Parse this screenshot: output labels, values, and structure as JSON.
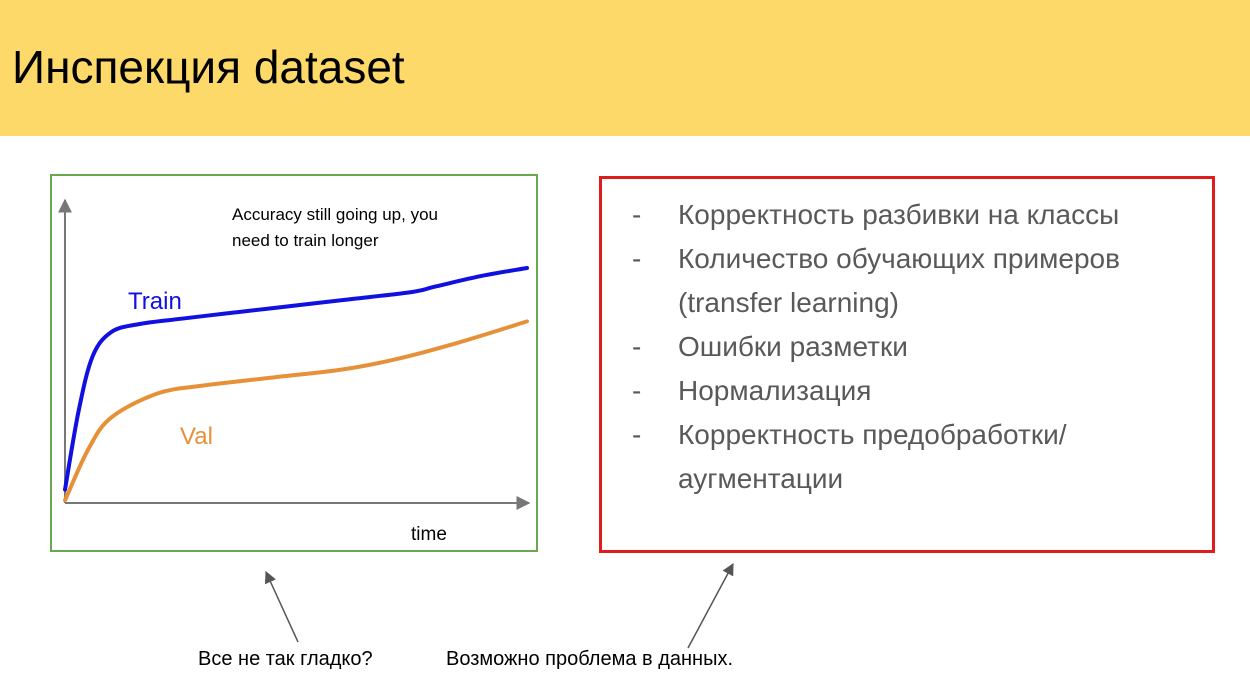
{
  "slide": {
    "title": "Инспекция dataset"
  },
  "chart": {
    "annotation_line1": "Accuracy still going up, you",
    "annotation_line2": "need to train longer",
    "x_axis_label": "time",
    "train_label": "Train",
    "val_label": "Val"
  },
  "chart_data": {
    "type": "line",
    "title": "",
    "xlabel": "time",
    "ylabel": "",
    "grid": false,
    "legend": "inline labels",
    "series": [
      {
        "name": "Train",
        "color": "#1010e0",
        "x": [
          0,
          0.03,
          0.06,
          0.1,
          0.16,
          0.25,
          0.35,
          0.45,
          0.6,
          0.75,
          0.8,
          0.9,
          1.0
        ],
        "y": [
          0.05,
          0.35,
          0.55,
          0.64,
          0.67,
          0.69,
          0.71,
          0.73,
          0.76,
          0.79,
          0.81,
          0.85,
          0.88
        ]
      },
      {
        "name": "Val",
        "color": "#e69138",
        "x": [
          0,
          0.05,
          0.1,
          0.2,
          0.3,
          0.45,
          0.6,
          0.72,
          0.85,
          1.0
        ],
        "y": [
          0.01,
          0.2,
          0.32,
          0.41,
          0.44,
          0.47,
          0.5,
          0.54,
          0.6,
          0.68
        ]
      }
    ]
  },
  "checklist": {
    "items": [
      {
        "dash": "-",
        "text": "Корректность разбивки на классы"
      },
      {
        "dash": "-",
        "text": "Количество обучающих примеров (transfer learning)"
      },
      {
        "dash": "-",
        "text": "Ошибки разметки"
      },
      {
        "dash": "-",
        "text": "Нормализация"
      },
      {
        "dash": "-",
        "text": "Корректность предобработки/аугментации"
      }
    ]
  },
  "captions": {
    "left": "Все не так гладко?",
    "right": "Возможно проблема в данных."
  },
  "colors": {
    "header_bg": "#fdd969",
    "chart_border": "#6aa84f",
    "list_border": "#e01b1b",
    "train": "#1010e0",
    "val": "#e69138"
  }
}
